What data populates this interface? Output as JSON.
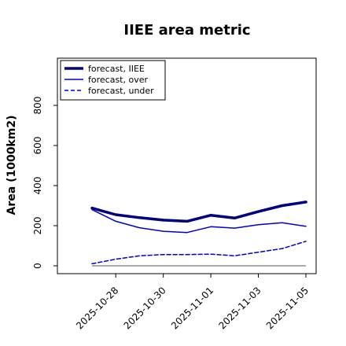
{
  "chart_data": {
    "type": "line",
    "title": "IIEE area metric",
    "xlabel": "",
    "ylabel": "Area (1000km2)",
    "x": [
      "2025-10-27",
      "2025-10-28",
      "2025-10-29",
      "2025-10-30",
      "2025-10-31",
      "2025-11-01",
      "2025-11-02",
      "2025-11-03",
      "2025-11-04",
      "2025-11-05"
    ],
    "xticks": [
      "2025-10-28",
      "2025-10-30",
      "2025-11-01",
      "2025-11-03",
      "2025-11-05"
    ],
    "highlight_tick": "2025-10-28",
    "highlight_color": "#228B22",
    "ylim": [
      -40,
      1000
    ],
    "yticks": [
      0,
      200,
      400,
      600,
      800
    ],
    "grid": false,
    "legend_position": "top-left",
    "baseline": 0,
    "series": [
      {
        "name": "forecast, IIEE",
        "color": "#000080",
        "style": "solid-thick",
        "values": [
          288,
          255,
          240,
          228,
          222,
          252,
          238,
          270,
          300,
          318
        ]
      },
      {
        "name": "forecast, over",
        "color": "#0000CD",
        "style": "solid",
        "values": [
          280,
          222,
          190,
          172,
          166,
          195,
          188,
          205,
          215,
          197
        ]
      },
      {
        "name": "forecast, under",
        "color": "#0000CD",
        "style": "dashed",
        "values": [
          10,
          33,
          50,
          56,
          56,
          58,
          50,
          68,
          86,
          122
        ]
      }
    ]
  }
}
